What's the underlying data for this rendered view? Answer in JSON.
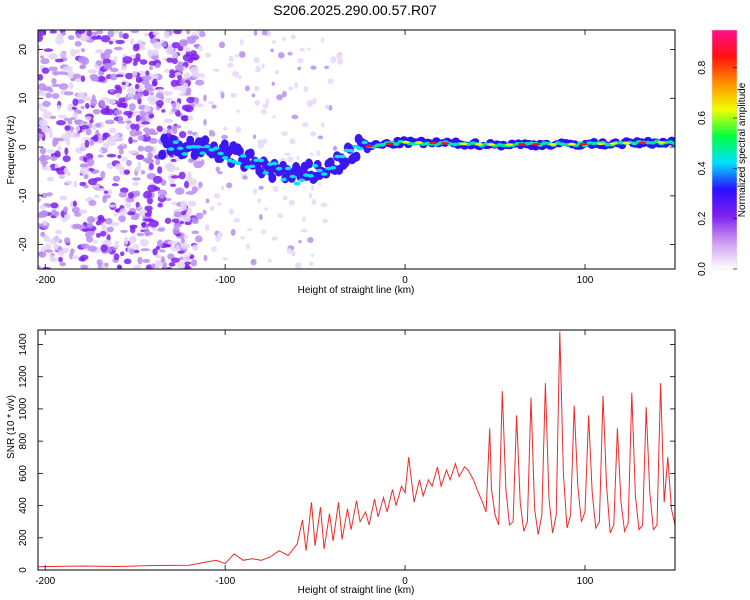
{
  "chart_data": [
    {
      "type": "heatmap",
      "title": "S206.2025.290.00.57.R07",
      "xlabel": "Height of straight line (km)",
      "ylabel": "Frequency (Hz)",
      "xlim": [
        -204,
        150
      ],
      "ylim": [
        -25,
        24
      ],
      "xticks": [
        -200,
        -100,
        0,
        100
      ],
      "xtick_labels": [
        "-200",
        "-100",
        "0",
        "100"
      ],
      "yticks": [
        -20,
        -10,
        0,
        10,
        20
      ],
      "ytick_labels": [
        "-20",
        "-10",
        "0",
        "10",
        "20"
      ],
      "description_of_signal": [
        {
          "x": -200,
          "y": 0,
          "note": "scattered noise"
        },
        {
          "x": -120,
          "y": 0
        },
        {
          "x": -100,
          "y": -1
        },
        {
          "x": -80,
          "y": -4
        },
        {
          "x": -60,
          "y": -6
        },
        {
          "x": -40,
          "y": -4
        },
        {
          "x": -25,
          "y": 0
        },
        {
          "x": 0,
          "y": 1
        },
        {
          "x": 50,
          "y": 0.5
        },
        {
          "x": 100,
          "y": 0.6
        },
        {
          "x": 150,
          "y": 1
        }
      ],
      "colorbar": {
        "label": "Normalized spectral amplitude",
        "range": [
          0,
          0.95
        ],
        "ticks": [
          0,
          0.2,
          0.4,
          0.6,
          0.8
        ],
        "tick_labels": [
          "0.0",
          "0.2",
          "0.4",
          "0.6",
          "0.8"
        ],
        "colors": [
          "#ffffff",
          "#ce9cf0",
          "#7f20f0",
          "#2a10ff",
          "#00e0ff",
          "#00ff40",
          "#f0ff00",
          "#ff9000",
          "#ff1010",
          "#ff1090"
        ]
      }
    },
    {
      "type": "line",
      "xlabel": "Height of straight line (km)",
      "ylabel": "SNR (10 * v/v)",
      "xlim": [
        -204,
        150
      ],
      "ylim": [
        0,
        1490
      ],
      "xticks": [
        -200,
        -100,
        0,
        100
      ],
      "xtick_labels": [
        "-200",
        "-100",
        "0",
        "100"
      ],
      "yticks": [
        0,
        200,
        400,
        600,
        800,
        1000,
        1200,
        1400
      ],
      "ytick_labels": [
        "0",
        "200",
        "400",
        "600",
        "800",
        "1000",
        "1200",
        "1400"
      ],
      "series": [
        {
          "name": "SNR",
          "color": "#ee2b2b",
          "x": [
            -204,
            -180,
            -160,
            -140,
            -120,
            -110,
            -105,
            -100,
            -95,
            -90,
            -85,
            -80,
            -75,
            -70,
            -65,
            -60,
            -57,
            -55,
            -52,
            -50,
            -47,
            -45,
            -42,
            -40,
            -37,
            -35,
            -32,
            -30,
            -27,
            -25,
            -22,
            -20,
            -17,
            -15,
            -12,
            -10,
            -7,
            -5,
            -2,
            0,
            2,
            5,
            8,
            10,
            13,
            15,
            18,
            20,
            23,
            25,
            28,
            30,
            33,
            35,
            38,
            40,
            43,
            45,
            47,
            48,
            50,
            52,
            54,
            56,
            58,
            60,
            62,
            64,
            66,
            68,
            70,
            72,
            74,
            76,
            78,
            80,
            82,
            84,
            86,
            88,
            90,
            92,
            94,
            96,
            98,
            100,
            102,
            104,
            106,
            108,
            110,
            112,
            114,
            116,
            118,
            120,
            122,
            124,
            126,
            128,
            130,
            132,
            134,
            136,
            138,
            140,
            142,
            144,
            146,
            148,
            150
          ],
          "values": [
            20,
            25,
            22,
            28,
            30,
            50,
            60,
            40,
            100,
            60,
            70,
            60,
            80,
            120,
            90,
            160,
            310,
            120,
            420,
            150,
            390,
            130,
            350,
            180,
            420,
            190,
            380,
            250,
            430,
            300,
            360,
            280,
            440,
            330,
            450,
            360,
            500,
            400,
            520,
            480,
            700,
            420,
            560,
            460,
            560,
            520,
            640,
            520,
            620,
            560,
            660,
            580,
            640,
            620,
            560,
            500,
            420,
            360,
            880,
            500,
            340,
            280,
            1110,
            500,
            280,
            300,
            960,
            420,
            240,
            300,
            1070,
            380,
            220,
            340,
            1160,
            440,
            230,
            340,
            1480,
            600,
            260,
            340,
            1020,
            520,
            300,
            360,
            960,
            480,
            260,
            300,
            1080,
            520,
            230,
            280,
            880,
            420,
            240,
            290,
            1100,
            460,
            250,
            280,
            1010,
            480,
            250,
            280,
            1160,
            420,
            700,
            380,
            280
          ]
        }
      ]
    }
  ]
}
